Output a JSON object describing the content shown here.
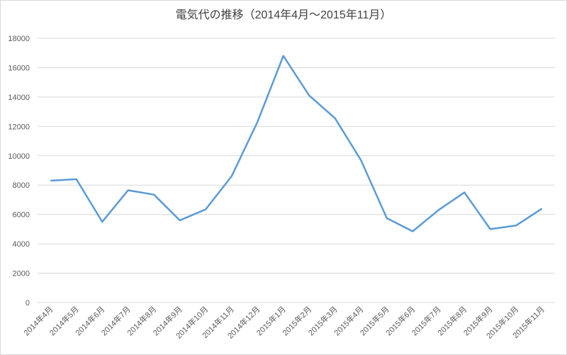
{
  "chart_data": {
    "type": "line",
    "title": "電気代の推移（2014年4月～2015年11月）",
    "categories": [
      "2014年4月",
      "2014年5月",
      "2014年6月",
      "2014年7月",
      "2014年8月",
      "2014年9月",
      "2014年10月",
      "2014年11月",
      "2014年12月",
      "2015年1月",
      "2015年2月",
      "2015年3月",
      "2015年4月",
      "2015年5月",
      "2015年6月",
      "2015年7月",
      "2015年8月",
      "2015年9月",
      "2015年10月",
      "2015年11月"
    ],
    "series": [
      {
        "name": "電気代",
        "color": "#5b9bd5",
        "values": [
          8300,
          8400,
          5500,
          7650,
          7350,
          5600,
          6350,
          8600,
          12300,
          16800,
          14100,
          12550,
          9700,
          5750,
          4850,
          6300,
          7500,
          5000,
          5250,
          6400
        ]
      }
    ],
    "ylim": [
      0,
      18000
    ],
    "yticks": [
      0,
      2000,
      4000,
      6000,
      8000,
      10000,
      12000,
      14000,
      16000,
      18000
    ],
    "grid": true
  }
}
